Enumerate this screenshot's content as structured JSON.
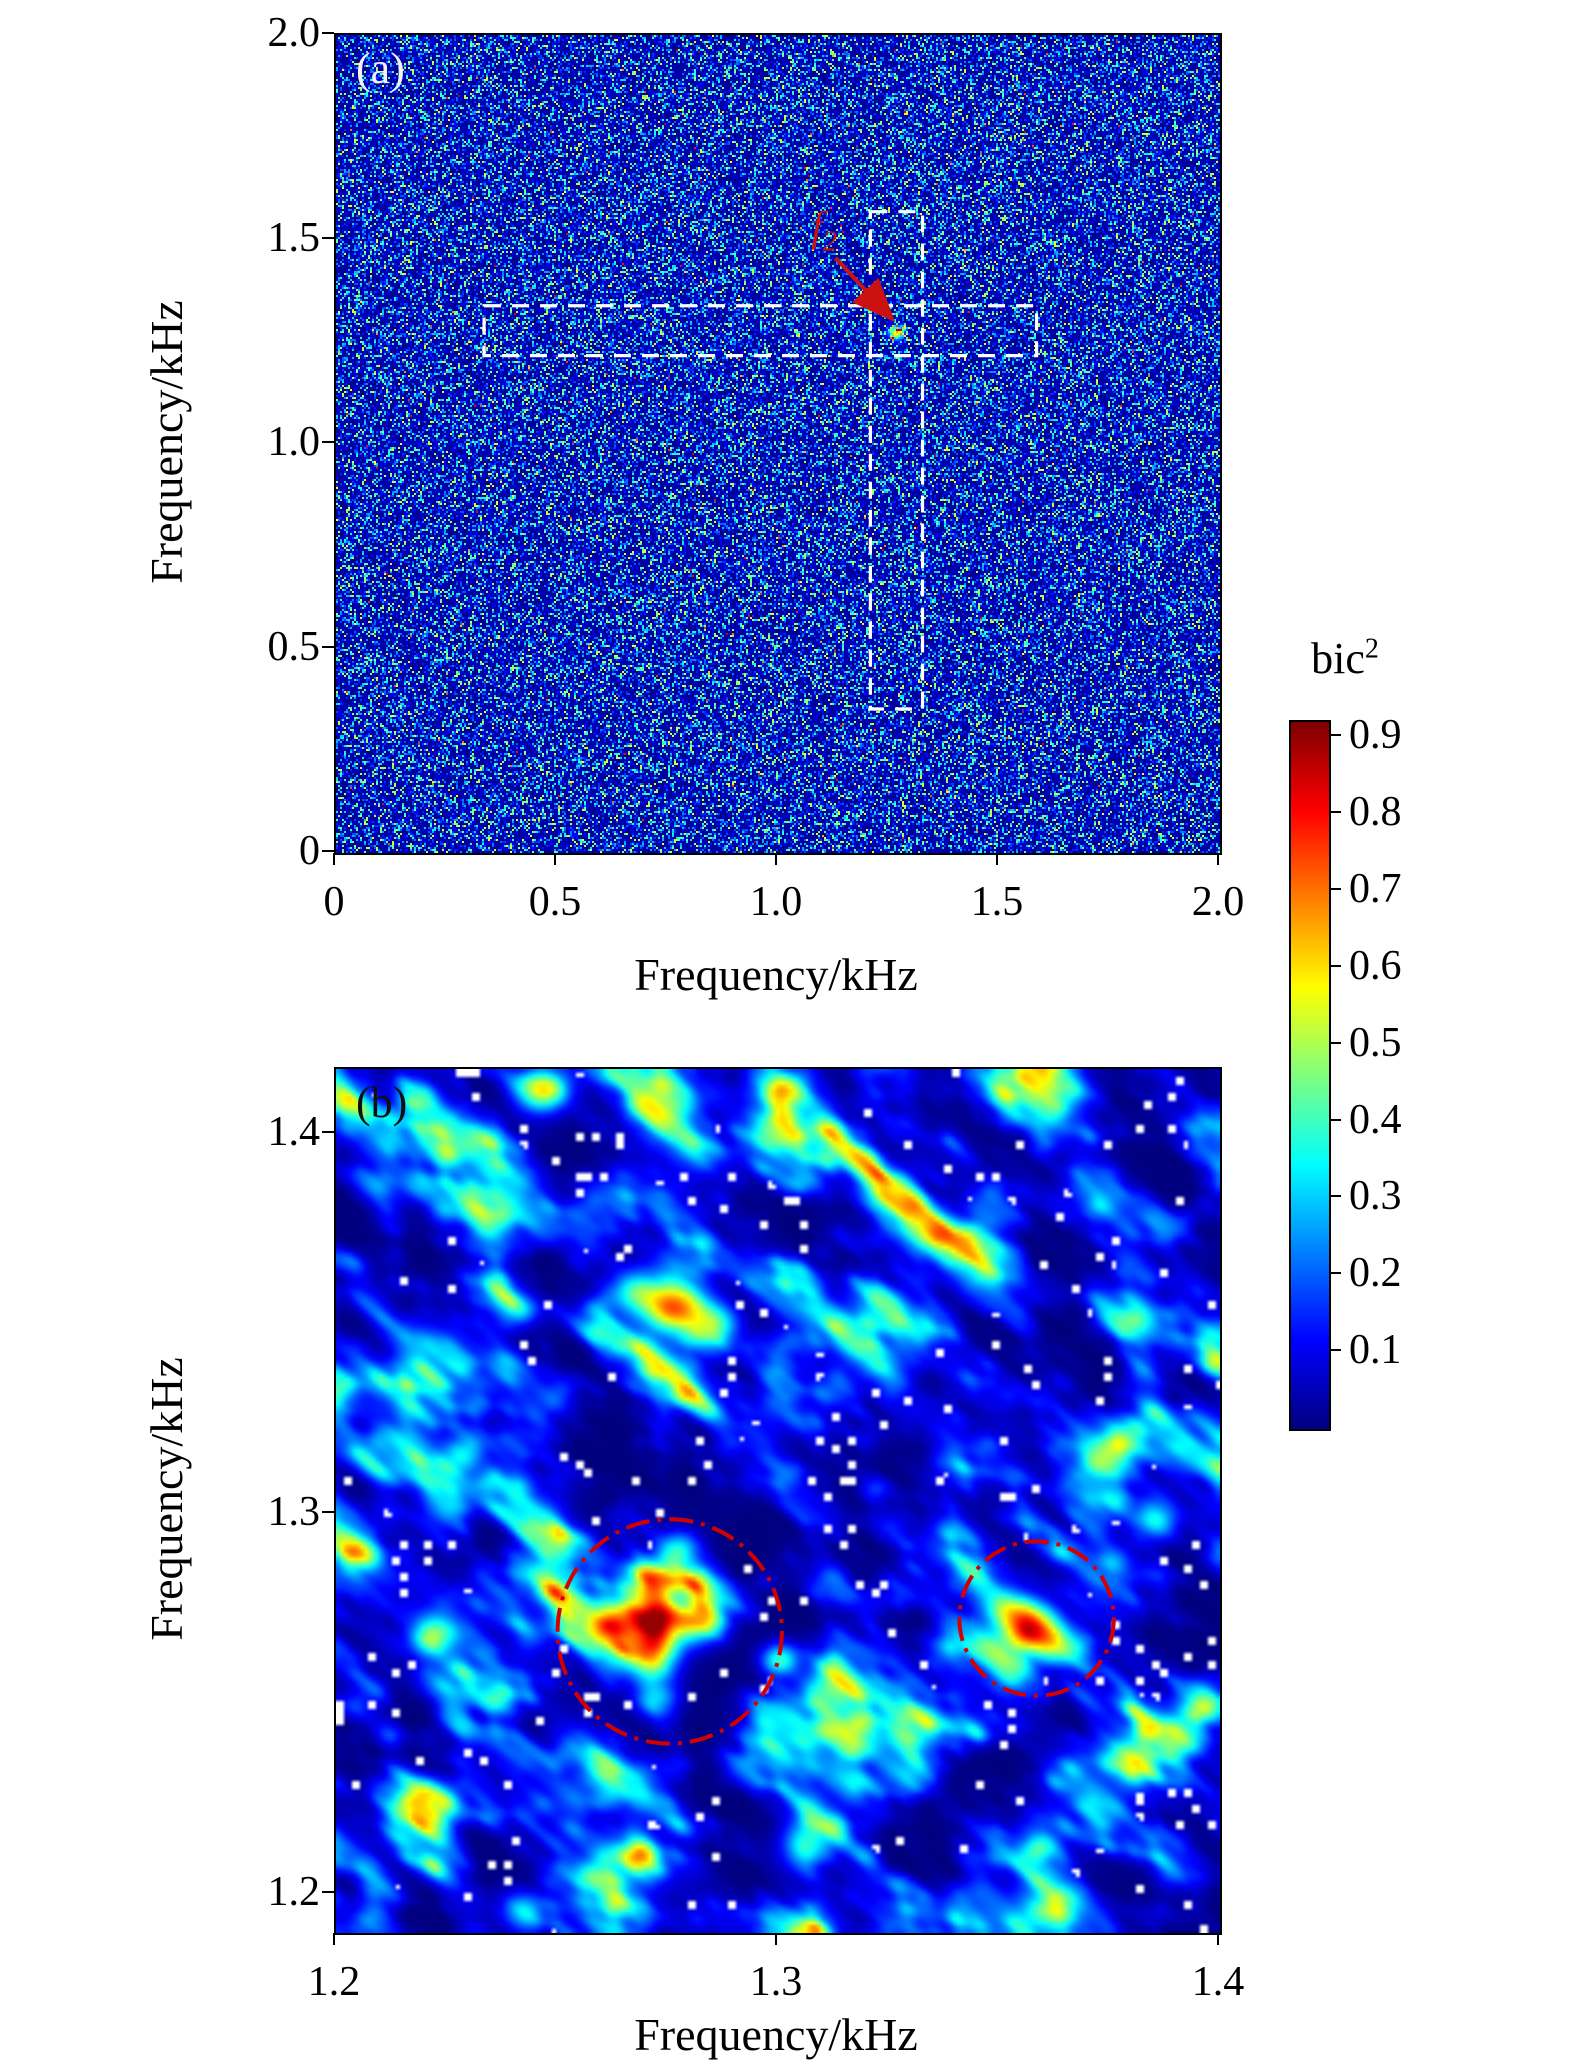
{
  "chart_data": [
    {
      "type": "heatmap",
      "panel": "a",
      "label": "(a)",
      "xlabel": "Frequency/kHz",
      "ylabel": "Frequency/kHz",
      "xlim": [
        0,
        2.0
      ],
      "ylim": [
        0,
        2.0
      ],
      "xticks": [
        0,
        0.5,
        1.0,
        1.5,
        2.0
      ],
      "xtick_labels": [
        "0",
        "0.5",
        "1.0",
        "1.5",
        "2.0"
      ],
      "yticks": [
        0,
        0.5,
        1.0,
        1.5,
        2.0
      ],
      "ytick_labels": [
        "0",
        "0.5",
        "1.0",
        "1.5",
        "2.0"
      ],
      "value_label": "bic2",
      "content": "fine speckled broadband bicoherence noise, mostly 0.0-0.3 with sparse specks up to 0.6",
      "noise": {
        "seed": 31,
        "base": 0.02,
        "gain": 0.55,
        "power": 4,
        "rare_threshold": 0.998
      },
      "hotspot": {
        "x": 1.268,
        "y": 1.272,
        "amp": 0.55,
        "sigma": 0.012
      },
      "annotations": {
        "rects": [
          {
            "x0": 0.335,
            "x1": 1.585,
            "y0": 1.216,
            "y1": 1.338,
            "style": "dashed",
            "color": "#ffffff"
          },
          {
            "x0": 1.209,
            "x1": 1.327,
            "y0": 0.352,
            "y1": 1.568,
            "style": "dashed",
            "color": "#ffffff"
          }
        ],
        "peak_label": {
          "text_main": "f",
          "text_sub": "2",
          "x": 1.075,
          "y": 1.497,
          "arrow_from_x": 1.13,
          "arrow_from_y": 1.455,
          "arrow_to_x": 1.253,
          "arrow_to_y": 1.312,
          "color": "#cc1111"
        }
      }
    },
    {
      "type": "heatmap",
      "panel": "b",
      "label": "(b)",
      "xlabel": "Frequency/kHz",
      "ylabel": "Frequency/kHz",
      "xlim": [
        1.2,
        1.4
      ],
      "ylim": [
        1.1896,
        1.4171
      ],
      "xticks": [
        1.2,
        1.3,
        1.4
      ],
      "xtick_labels": [
        "1.2",
        "1.3",
        "1.4"
      ],
      "yticks": [
        1.2,
        1.3,
        1.4
      ],
      "ytick_labels": [
        "1.2",
        "1.3",
        "1.4"
      ],
      "value_label": "bic2",
      "content": "smoothed zoom of bicoherence around f2; diagonal streaky blobs, two circled peaks near (1.27,1.27) and (1.36,1.27)",
      "noise": {
        "seed": 21,
        "floor": 0.22,
        "power": 2.1,
        "max": 0.92
      },
      "hotspots": [
        [
          1.272,
          1.2715,
          0.75,
          0.0045
        ],
        [
          1.262,
          1.2715,
          0.45,
          0.004
        ],
        [
          1.282,
          1.2715,
          0.45,
          0.004
        ],
        [
          1.272,
          1.2625,
          0.42,
          0.004
        ],
        [
          1.272,
          1.281,
          0.42,
          0.004
        ],
        [
          1.2775,
          1.2905,
          0.35,
          0.0035
        ],
        [
          1.2725,
          1.2515,
          0.3,
          0.0035
        ],
        [
          1.3565,
          1.2705,
          0.72,
          0.0045
        ],
        [
          1.3625,
          1.2655,
          0.4,
          0.004
        ],
        [
          1.3505,
          1.2755,
          0.3,
          0.0035
        ],
        [
          1.2765,
          1.3545,
          0.7,
          0.005
        ],
        [
          1.2855,
          1.3495,
          0.4,
          0.004
        ],
        [
          1.2675,
          1.3585,
          0.35,
          0.004
        ],
        [
          1.2465,
          1.4115,
          0.55,
          0.004
        ],
        [
          1.3015,
          1.4105,
          0.45,
          0.004
        ],
        [
          1.2215,
          1.2675,
          0.4,
          0.0035
        ],
        [
          1.2035,
          1.2895,
          0.35,
          0.003
        ],
        [
          1.3005,
          1.2615,
          0.38,
          0.003
        ],
        [
          1.3855,
          1.2985,
          0.33,
          0.0035
        ],
        [
          1.3065,
          1.2125,
          0.35,
          0.004
        ],
        [
          1.2685,
          1.2105,
          0.33,
          0.004
        ],
        [
          1.3625,
          1.1945,
          0.3,
          0.004
        ],
        [
          1.2425,
          1.1955,
          0.3,
          0.0035
        ],
        [
          1.3405,
          1.3705,
          0.3,
          0.004
        ],
        [
          1.2285,
          1.3155,
          0.32,
          0.0035
        ]
      ],
      "circles": [
        {
          "cx": 1.2755,
          "cy": 1.269,
          "r": 0.0273,
          "color": "#d40000",
          "style": "dash-dot"
        },
        {
          "cx": 1.3585,
          "cy": 1.2724,
          "r": 0.0188,
          "color": "#d40000",
          "style": "dash-dot"
        }
      ]
    }
  ],
  "colorbar": {
    "title_main": "bic",
    "title_sup": "2",
    "vmin": 0,
    "vmax": 0.92,
    "ticks": [
      0.1,
      0.2,
      0.3,
      0.4,
      0.5,
      0.6,
      0.7,
      0.8,
      0.9
    ],
    "tick_labels": [
      "0.1",
      "0.2",
      "0.3",
      "0.4",
      "0.5",
      "0.6",
      "0.7",
      "0.8",
      "0.9"
    ],
    "colormap": "jet"
  }
}
